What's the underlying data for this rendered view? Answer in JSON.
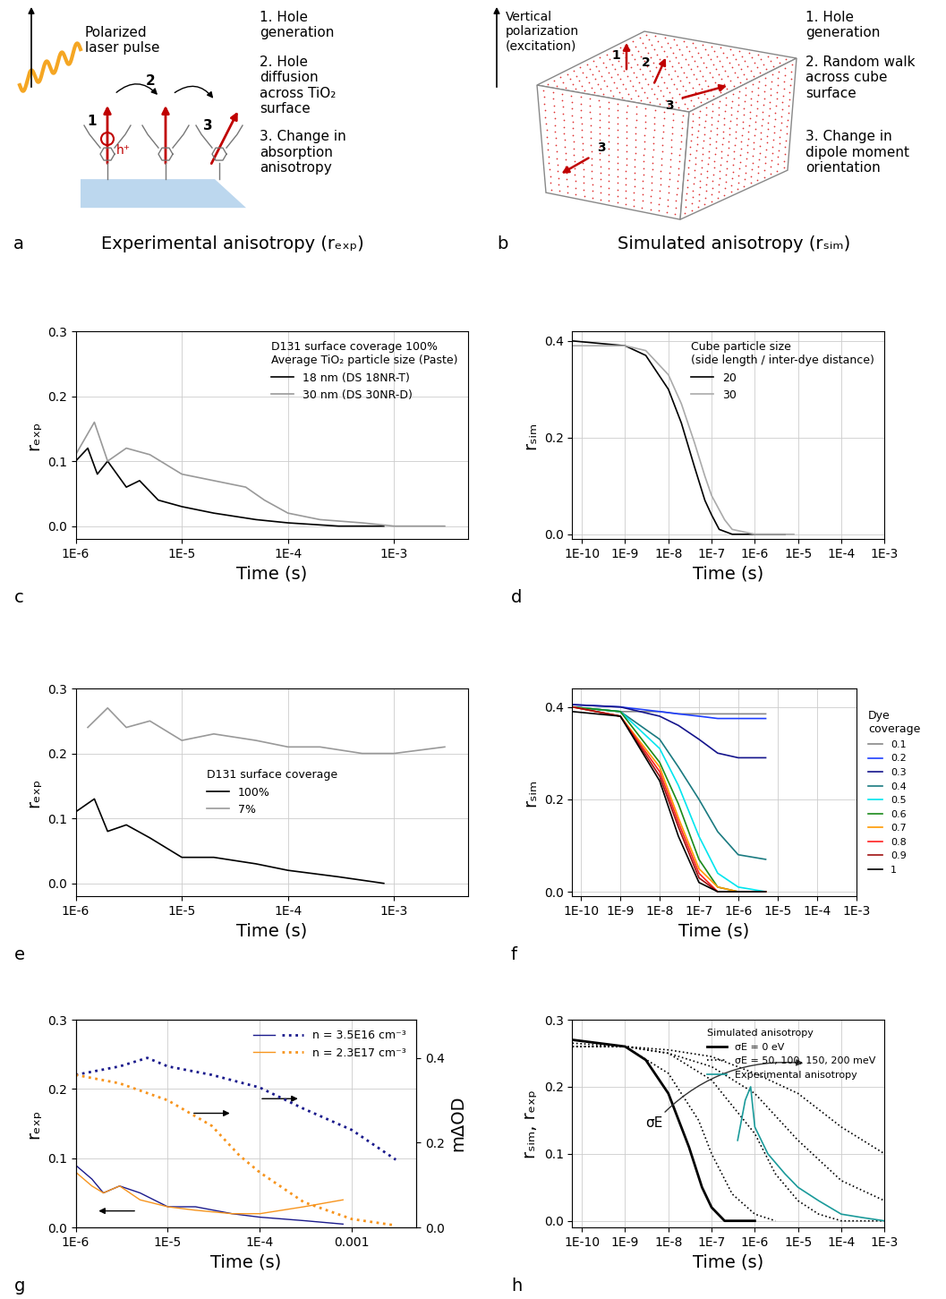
{
  "diagrams": {
    "a": {
      "panel": "a",
      "title": "Experimental anisotropy (rₑₓₚ)",
      "laser_label": "Polarized\nlaser pulse",
      "hole_label": "h⁺",
      "markers": [
        "1",
        "2",
        "3"
      ],
      "steps": [
        "1. Hole\ngeneration",
        "2. Hole\ndiffusion\nacross TiO₂\nsurface",
        "3. Change in\nabsorption\nanisotropy"
      ]
    },
    "b": {
      "panel": "b",
      "title": "Simulated anisotropy (rₛᵢₘ)",
      "polarization_label": "Vertical\npolarization\n(excitation)",
      "markers": [
        "1",
        "2",
        "3",
        "3"
      ],
      "steps": [
        "1. Hole\ngeneration",
        "2. Random walk\nacross cube\nsurface",
        "3. Change in\ndipole moment\norientation"
      ]
    }
  },
  "chart_data": [
    {
      "panel": "c",
      "type": "line",
      "log": "x",
      "grid": true,
      "xlabel": "Time (s)",
      "ylabel": "rₑₓₚ",
      "xlim": [
        1e-06,
        0.005
      ],
      "xticks": [
        {
          "value": 1e-06,
          "label": "1E-6"
        },
        {
          "value": 1e-05,
          "label": "1E-5"
        },
        {
          "value": 0.0001,
          "label": "1E-4"
        },
        {
          "value": 0.001,
          "label": "1E-3"
        }
      ],
      "ylim": [
        -0.02,
        0.3
      ],
      "yticks": [
        0.0,
        0.1,
        0.2,
        0.3
      ],
      "legend": "upper right",
      "legend_title": "D131 surface coverage 100%\nAverage TiO₂ particle size (Paste)",
      "series": [
        {
          "name": "18 nm (DS 18NR-T)",
          "color": "#000000",
          "line_style": "solid",
          "x": [
            1e-06,
            1.3e-06,
            1.6e-06,
            2e-06,
            3e-06,
            4e-06,
            6e-06,
            1e-05,
            2e-05,
            5e-05,
            0.0001,
            0.0003,
            0.0008
          ],
          "values": [
            0.1,
            0.12,
            0.08,
            0.1,
            0.06,
            0.07,
            0.04,
            0.03,
            0.02,
            0.01,
            0.005,
            0.0,
            0.0
          ]
        },
        {
          "name": "30 nm (DS 30NR-D)",
          "color": "#999999",
          "line_style": "solid",
          "x": [
            1e-06,
            1.5e-06,
            2e-06,
            3e-06,
            5e-06,
            1e-05,
            2e-05,
            4e-05,
            6e-05,
            0.0001,
            0.0002,
            0.0005,
            0.001,
            0.003
          ],
          "values": [
            0.11,
            0.16,
            0.1,
            0.12,
            0.11,
            0.08,
            0.07,
            0.06,
            0.04,
            0.02,
            0.01,
            0.005,
            0.0,
            0.0
          ]
        }
      ]
    },
    {
      "panel": "d",
      "type": "line",
      "log": "x",
      "grid": true,
      "xlabel": "Time (s)",
      "ylabel": "rₛᵢₘ",
      "xlim": [
        6e-11,
        0.001
      ],
      "xticks": [
        {
          "value": 1e-10,
          "label": "1E-10"
        },
        {
          "value": 1e-09,
          "label": "1E-9"
        },
        {
          "value": 1e-08,
          "label": "1E-8"
        },
        {
          "value": 1e-07,
          "label": "1E-7"
        },
        {
          "value": 1e-06,
          "label": "1E-6"
        },
        {
          "value": 1e-05,
          "label": "1E-5"
        },
        {
          "value": 0.0001,
          "label": "1E-4"
        },
        {
          "value": 0.001,
          "label": "1E-3"
        }
      ],
      "ylim": [
        -0.01,
        0.42
      ],
      "yticks": [
        0.0,
        0.2,
        0.4
      ],
      "legend": "upper right",
      "legend_title": "Cube particle size\n(side length / inter-dye distance)",
      "series": [
        {
          "name": "20",
          "color": "#000000",
          "line_style": "solid",
          "x": [
            6e-11,
            1e-09,
            3e-09,
            1e-08,
            2e-08,
            4e-08,
            7e-08,
            1e-07,
            1.5e-07,
            3e-07,
            1e-06,
            5e-06
          ],
          "values": [
            0.4,
            0.39,
            0.37,
            0.3,
            0.23,
            0.14,
            0.07,
            0.04,
            0.01,
            0.0,
            0.0,
            0.0
          ]
        },
        {
          "name": "30",
          "color": "#aaaaaa",
          "line_style": "solid",
          "x": [
            6e-11,
            1e-09,
            3e-09,
            1e-08,
            2e-08,
            4e-08,
            7e-08,
            1e-07,
            2e-07,
            3e-07,
            1e-06,
            8e-06
          ],
          "values": [
            0.39,
            0.39,
            0.38,
            0.33,
            0.27,
            0.19,
            0.12,
            0.08,
            0.03,
            0.01,
            0.0,
            0.0
          ]
        }
      ]
    },
    {
      "panel": "e",
      "type": "line",
      "log": "x",
      "grid": true,
      "xlabel": "Time (s)",
      "ylabel": "rₑₓₚ",
      "xlim": [
        1e-06,
        0.005
      ],
      "xticks": [
        {
          "value": 1e-06,
          "label": "1E-6"
        },
        {
          "value": 1e-05,
          "label": "1E-5"
        },
        {
          "value": 0.0001,
          "label": "1E-4"
        },
        {
          "value": 0.001,
          "label": "1E-3"
        }
      ],
      "ylim": [
        -0.02,
        0.3
      ],
      "yticks": [
        0.0,
        0.1,
        0.2,
        0.3
      ],
      "legend": "center",
      "legend_title": "D131 surface coverage",
      "series": [
        {
          "name": "100%",
          "color": "#000000",
          "line_style": "solid",
          "x": [
            1e-06,
            1.5e-06,
            2e-06,
            3e-06,
            5e-06,
            1e-05,
            2e-05,
            5e-05,
            0.0001,
            0.0003,
            0.0008
          ],
          "values": [
            0.11,
            0.13,
            0.08,
            0.09,
            0.07,
            0.04,
            0.04,
            0.03,
            0.02,
            0.01,
            0.0
          ]
        },
        {
          "name": "7%",
          "color": "#999999",
          "line_style": "solid",
          "x": [
            1.3e-06,
            2e-06,
            3e-06,
            5e-06,
            1e-05,
            2e-05,
            5e-05,
            0.0001,
            0.0002,
            0.0005,
            0.001,
            0.003
          ],
          "values": [
            0.24,
            0.27,
            0.24,
            0.25,
            0.22,
            0.23,
            0.22,
            0.21,
            0.21,
            0.2,
            0.2,
            0.21
          ]
        }
      ]
    },
    {
      "panel": "f",
      "type": "line",
      "log": "x",
      "grid": true,
      "xlabel": "Time (s)",
      "ylabel": "rₛᵢₘ",
      "xlim": [
        6e-11,
        0.001
      ],
      "xticks": [
        {
          "value": 1e-10,
          "label": "1E-10"
        },
        {
          "value": 1e-09,
          "label": "1E-9"
        },
        {
          "value": 1e-08,
          "label": "1E-8"
        },
        {
          "value": 1e-07,
          "label": "1E-7"
        },
        {
          "value": 1e-06,
          "label": "1E-6"
        },
        {
          "value": 1e-05,
          "label": "1E-5"
        },
        {
          "value": 0.0001,
          "label": "1E-4"
        },
        {
          "value": 0.001,
          "label": "1E-3"
        }
      ],
      "ylim": [
        -0.01,
        0.44
      ],
      "yticks": [
        0.0,
        0.2,
        0.4
      ],
      "legend": "outside right",
      "legend_title": "Dye\ncoverage",
      "series": [
        {
          "name": "0.1",
          "color": "#888888",
          "line_style": "solid",
          "x": [
            6e-11,
            1e-09,
            1e-08,
            3e-08,
            1e-07,
            3e-07,
            1e-06,
            5e-06
          ],
          "values": [
            0.4,
            0.39,
            0.39,
            0.385,
            0.385,
            0.385,
            0.385,
            0.385
          ]
        },
        {
          "name": "0.2",
          "color": "#1f3fff",
          "line_style": "solid",
          "x": [
            6e-11,
            1e-09,
            1e-08,
            3e-08,
            1e-07,
            3e-07,
            1e-06,
            5e-06
          ],
          "values": [
            0.405,
            0.4,
            0.39,
            0.385,
            0.38,
            0.375,
            0.375,
            0.375
          ]
        },
        {
          "name": "0.3",
          "color": "#14148c",
          "line_style": "solid",
          "x": [
            6e-11,
            1e-09,
            1e-08,
            3e-08,
            1e-07,
            3e-07,
            1e-06,
            5e-06
          ],
          "values": [
            0.405,
            0.4,
            0.38,
            0.36,
            0.33,
            0.3,
            0.29,
            0.29
          ]
        },
        {
          "name": "0.4",
          "color": "#1a7a80",
          "line_style": "solid",
          "x": [
            6e-11,
            1e-09,
            1e-08,
            3e-08,
            1e-07,
            3e-07,
            1e-06,
            5e-06
          ],
          "values": [
            0.4,
            0.39,
            0.33,
            0.27,
            0.2,
            0.13,
            0.08,
            0.07
          ]
        },
        {
          "name": "0.5",
          "color": "#00e5ee",
          "line_style": "solid",
          "x": [
            6e-11,
            1e-09,
            1e-08,
            3e-08,
            1e-07,
            3e-07,
            1e-06,
            5e-06
          ],
          "values": [
            0.4,
            0.39,
            0.31,
            0.23,
            0.12,
            0.04,
            0.01,
            0.0
          ]
        },
        {
          "name": "0.6",
          "color": "#1a8a1a",
          "line_style": "solid",
          "x": [
            6e-11,
            1e-09,
            1e-08,
            3e-08,
            1e-07,
            3e-07,
            1e-06,
            5e-06
          ],
          "values": [
            0.4,
            0.39,
            0.28,
            0.19,
            0.07,
            0.01,
            0.0,
            0.0
          ]
        },
        {
          "name": "0.7",
          "color": "#ff9900",
          "line_style": "solid",
          "x": [
            6e-11,
            1e-09,
            1e-08,
            3e-08,
            1e-07,
            3e-07,
            1e-06,
            5e-06
          ],
          "values": [
            0.4,
            0.38,
            0.27,
            0.16,
            0.05,
            0.01,
            0.0,
            0.0
          ]
        },
        {
          "name": "0.8",
          "color": "#ff2020",
          "line_style": "solid",
          "x": [
            6e-11,
            1e-09,
            1e-08,
            3e-08,
            1e-07,
            3e-07,
            1e-06,
            5e-06
          ],
          "values": [
            0.4,
            0.38,
            0.26,
            0.15,
            0.04,
            0.0,
            0.0,
            0.0
          ]
        },
        {
          "name": "0.9",
          "color": "#a01010",
          "line_style": "solid",
          "x": [
            6e-11,
            1e-09,
            1e-08,
            3e-08,
            1e-07,
            3e-07,
            1e-06,
            5e-06
          ],
          "values": [
            0.4,
            0.38,
            0.25,
            0.14,
            0.03,
            0.0,
            0.0,
            0.0
          ]
        },
        {
          "name": "1",
          "color": "#000000",
          "line_style": "solid",
          "x": [
            6e-11,
            1e-09,
            1e-08,
            3e-08,
            1e-07,
            3e-07,
            1e-06,
            5e-06
          ],
          "values": [
            0.39,
            0.38,
            0.24,
            0.12,
            0.02,
            0.0,
            0.0,
            0.0
          ]
        }
      ]
    },
    {
      "panel": "g",
      "type": "line",
      "log": "x",
      "grid": true,
      "xlabel": "Time (s)",
      "ylabel": "rₑₓₚ",
      "y2label": "mΔOD",
      "xlim": [
        1e-06,
        0.005
      ],
      "xticks": [
        {
          "value": 1e-06,
          "label": "1E-6"
        },
        {
          "value": 1e-05,
          "label": "1E-5"
        },
        {
          "value": 0.0001,
          "label": "1E-4"
        },
        {
          "value": 0.001,
          "label": "0.001"
        }
      ],
      "ylim": [
        0.0,
        0.3
      ],
      "yticks": [
        0.0,
        0.1,
        0.2,
        0.3
      ],
      "y2lim": [
        0.0,
        0.49
      ],
      "y2ticks": [
        0.0,
        0.2,
        0.4
      ],
      "legend": "upper right",
      "series": [
        {
          "name": "n = 3.5E16 cm⁻³",
          "color": "#1a1a8c",
          "x": [
            1e-06,
            1.5e-06,
            2e-06,
            3e-06,
            5e-06,
            1e-05,
            2e-05,
            5e-05,
            0.0001,
            0.0003,
            0.0008
          ],
          "values": [
            0.09,
            0.07,
            0.05,
            0.06,
            0.05,
            0.03,
            0.03,
            0.02,
            0.015,
            0.01,
            0.005
          ],
          "y2_x": [
            1e-06,
            3e-06,
            6e-06,
            1e-05,
            3e-05,
            0.0001,
            0.0003,
            0.001,
            0.003
          ],
          "y2_values": [
            0.36,
            0.38,
            0.4,
            0.38,
            0.36,
            0.33,
            0.28,
            0.23,
            0.16
          ]
        },
        {
          "name": "n = 2.3E17 cm⁻³",
          "color": "#f7941d",
          "x": [
            1e-06,
            1.5e-06,
            2e-06,
            3e-06,
            5e-06,
            1e-05,
            2e-05,
            5e-05,
            0.0001,
            0.0003,
            0.0008
          ],
          "values": [
            0.08,
            0.06,
            0.05,
            0.06,
            0.04,
            0.03,
            0.025,
            0.02,
            0.02,
            0.03,
            0.04
          ],
          "y2_x": [
            1e-06,
            3e-06,
            1e-05,
            3e-05,
            6e-05,
            0.0001,
            0.0003,
            0.001,
            0.003
          ],
          "y2_values": [
            0.36,
            0.34,
            0.3,
            0.24,
            0.17,
            0.13,
            0.06,
            0.02,
            0.005
          ]
        }
      ]
    },
    {
      "panel": "h",
      "type": "line",
      "log": "x",
      "grid": true,
      "xlabel": "Time (s)",
      "ylabel": "rₛᵢₘ, rₑₓₚ",
      "xlim": [
        6e-11,
        0.001
      ],
      "xticks": [
        {
          "value": 1e-10,
          "label": "1E-10"
        },
        {
          "value": 1e-09,
          "label": "1E-9"
        },
        {
          "value": 1e-08,
          "label": "1E-8"
        },
        {
          "value": 1e-07,
          "label": "1E-7"
        },
        {
          "value": 1e-06,
          "label": "1E-6"
        },
        {
          "value": 1e-05,
          "label": "1E-5"
        },
        {
          "value": 0.0001,
          "label": "1E-4"
        },
        {
          "value": 0.001,
          "label": "1E-3"
        }
      ],
      "ylim": [
        -0.01,
        0.3
      ],
      "yticks": [
        0.0,
        0.1,
        0.2,
        0.3
      ],
      "legend": "upper right",
      "legend_title": "Simulated anisotropy",
      "annotation": "σE",
      "series": [
        {
          "name": "σE = 0 eV",
          "color": "#000000",
          "line_style": "solid",
          "x": [
            6e-11,
            1e-09,
            3e-09,
            1e-08,
            3e-08,
            6e-08,
            1e-07,
            2e-07,
            1e-06
          ],
          "values": [
            0.27,
            0.26,
            0.24,
            0.19,
            0.11,
            0.05,
            0.02,
            0.0,
            0.0
          ]
        },
        {
          "name": "σE = 50, 100, 150, 200 meV",
          "color": "#000000",
          "line_style": "dotted",
          "curves": [
            {
              "x": [
                6e-11,
                1e-09,
                1e-08,
                5e-08,
                1e-07,
                3e-07,
                1e-06,
                3e-06
              ],
              "values": [
                0.265,
                0.26,
                0.22,
                0.15,
                0.1,
                0.04,
                0.01,
                0.0
              ]
            },
            {
              "x": [
                6e-11,
                1e-09,
                1e-08,
                1e-07,
                1e-06,
                3e-06,
                1e-05,
                3e-05,
                0.0001,
                0.001
              ],
              "values": [
                0.26,
                0.26,
                0.25,
                0.21,
                0.13,
                0.07,
                0.03,
                0.01,
                0.0,
                0.0
              ]
            },
            {
              "x": [
                6e-11,
                1e-09,
                1e-08,
                1e-07,
                1e-06,
                1e-05,
                0.0001,
                0.001
              ],
              "values": [
                0.26,
                0.26,
                0.25,
                0.23,
                0.19,
                0.12,
                0.06,
                0.03
              ]
            },
            {
              "x": [
                6e-11,
                1e-09,
                1e-08,
                1e-07,
                1e-06,
                1e-05,
                0.0001,
                0.001
              ],
              "values": [
                0.26,
                0.26,
                0.255,
                0.245,
                0.22,
                0.19,
                0.14,
                0.1
              ]
            }
          ]
        },
        {
          "name": "Experimental anisotropy",
          "color": "#1a9a9a",
          "line_style": "solid",
          "x": [
            4e-07,
            6e-07,
            8e-07,
            1e-06,
            2e-06,
            5e-06,
            1e-05,
            3e-05,
            0.0001,
            0.0003,
            0.001
          ],
          "values": [
            0.12,
            0.18,
            0.2,
            0.14,
            0.1,
            0.07,
            0.05,
            0.03,
            0.01,
            0.005,
            0.0
          ]
        }
      ]
    }
  ]
}
